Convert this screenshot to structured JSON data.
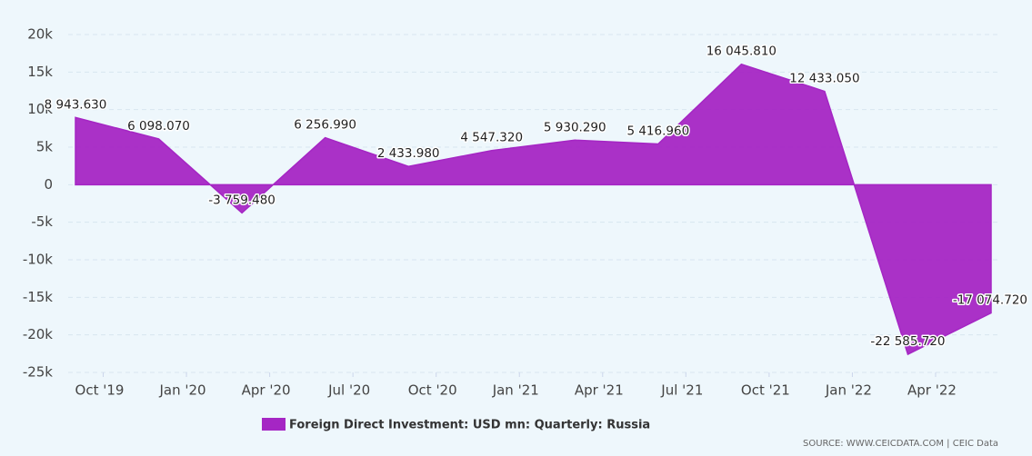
{
  "chart_data": {
    "type": "area",
    "x": [
      "2019-09",
      "2019-12",
      "2020-03",
      "2020-06",
      "2020-09",
      "2020-12",
      "2021-03",
      "2021-06",
      "2021-09",
      "2021-12",
      "2022-03",
      "2022-06"
    ],
    "series": [
      {
        "name": "Foreign Direct Investment: USD mn: Quarterly: Russia",
        "color": "#a526c4",
        "values": [
          8943.63,
          6098.07,
          -3759.48,
          6256.99,
          2433.98,
          4547.32,
          5930.29,
          5416.96,
          16045.81,
          12433.05,
          -22585.72,
          -17074.72
        ],
        "value_labels": [
          "8 943.630",
          "6 098.070",
          "-3 759.480",
          "6 256.990",
          "2 433.980",
          "4 547.320",
          "5 930.290",
          "5 416.960",
          "16 045.810",
          "12 433.050",
          "-22 585.720",
          "-17 074.720"
        ]
      }
    ],
    "xlim": [
      "2019-09",
      "2022-06"
    ],
    "xticks": [
      {
        "value": "2019-10",
        "label": "Oct '19"
      },
      {
        "value": "2020-01",
        "label": "Jan '20"
      },
      {
        "value": "2020-04",
        "label": "Apr '20"
      },
      {
        "value": "2020-07",
        "label": "Jul '20"
      },
      {
        "value": "2020-10",
        "label": "Oct '20"
      },
      {
        "value": "2021-01",
        "label": "Jan '21"
      },
      {
        "value": "2021-04",
        "label": "Apr '21"
      },
      {
        "value": "2021-07",
        "label": "Jul '21"
      },
      {
        "value": "2021-10",
        "label": "Oct '21"
      },
      {
        "value": "2022-01",
        "label": "Jan '22"
      },
      {
        "value": "2022-04",
        "label": "Apr '22"
      }
    ],
    "ylim": [
      -25000,
      20000
    ],
    "yticks": [
      {
        "value": 20000,
        "label": "20k"
      },
      {
        "value": 15000,
        "label": "15k"
      },
      {
        "value": 10000,
        "label": "10k"
      },
      {
        "value": 5000,
        "label": "5k"
      },
      0,
      {
        "value": -5000,
        "label": "-5k"
      },
      {
        "value": -10000,
        "label": "-10k"
      },
      {
        "value": -15000,
        "label": "-15k"
      },
      {
        "value": -20000,
        "label": "-20k"
      },
      {
        "value": -25000,
        "label": "-25k"
      }
    ],
    "grid": true,
    "legend": "bottom",
    "source": "SOURCE: WWW.CEICDATA.COM | CEIC Data"
  }
}
